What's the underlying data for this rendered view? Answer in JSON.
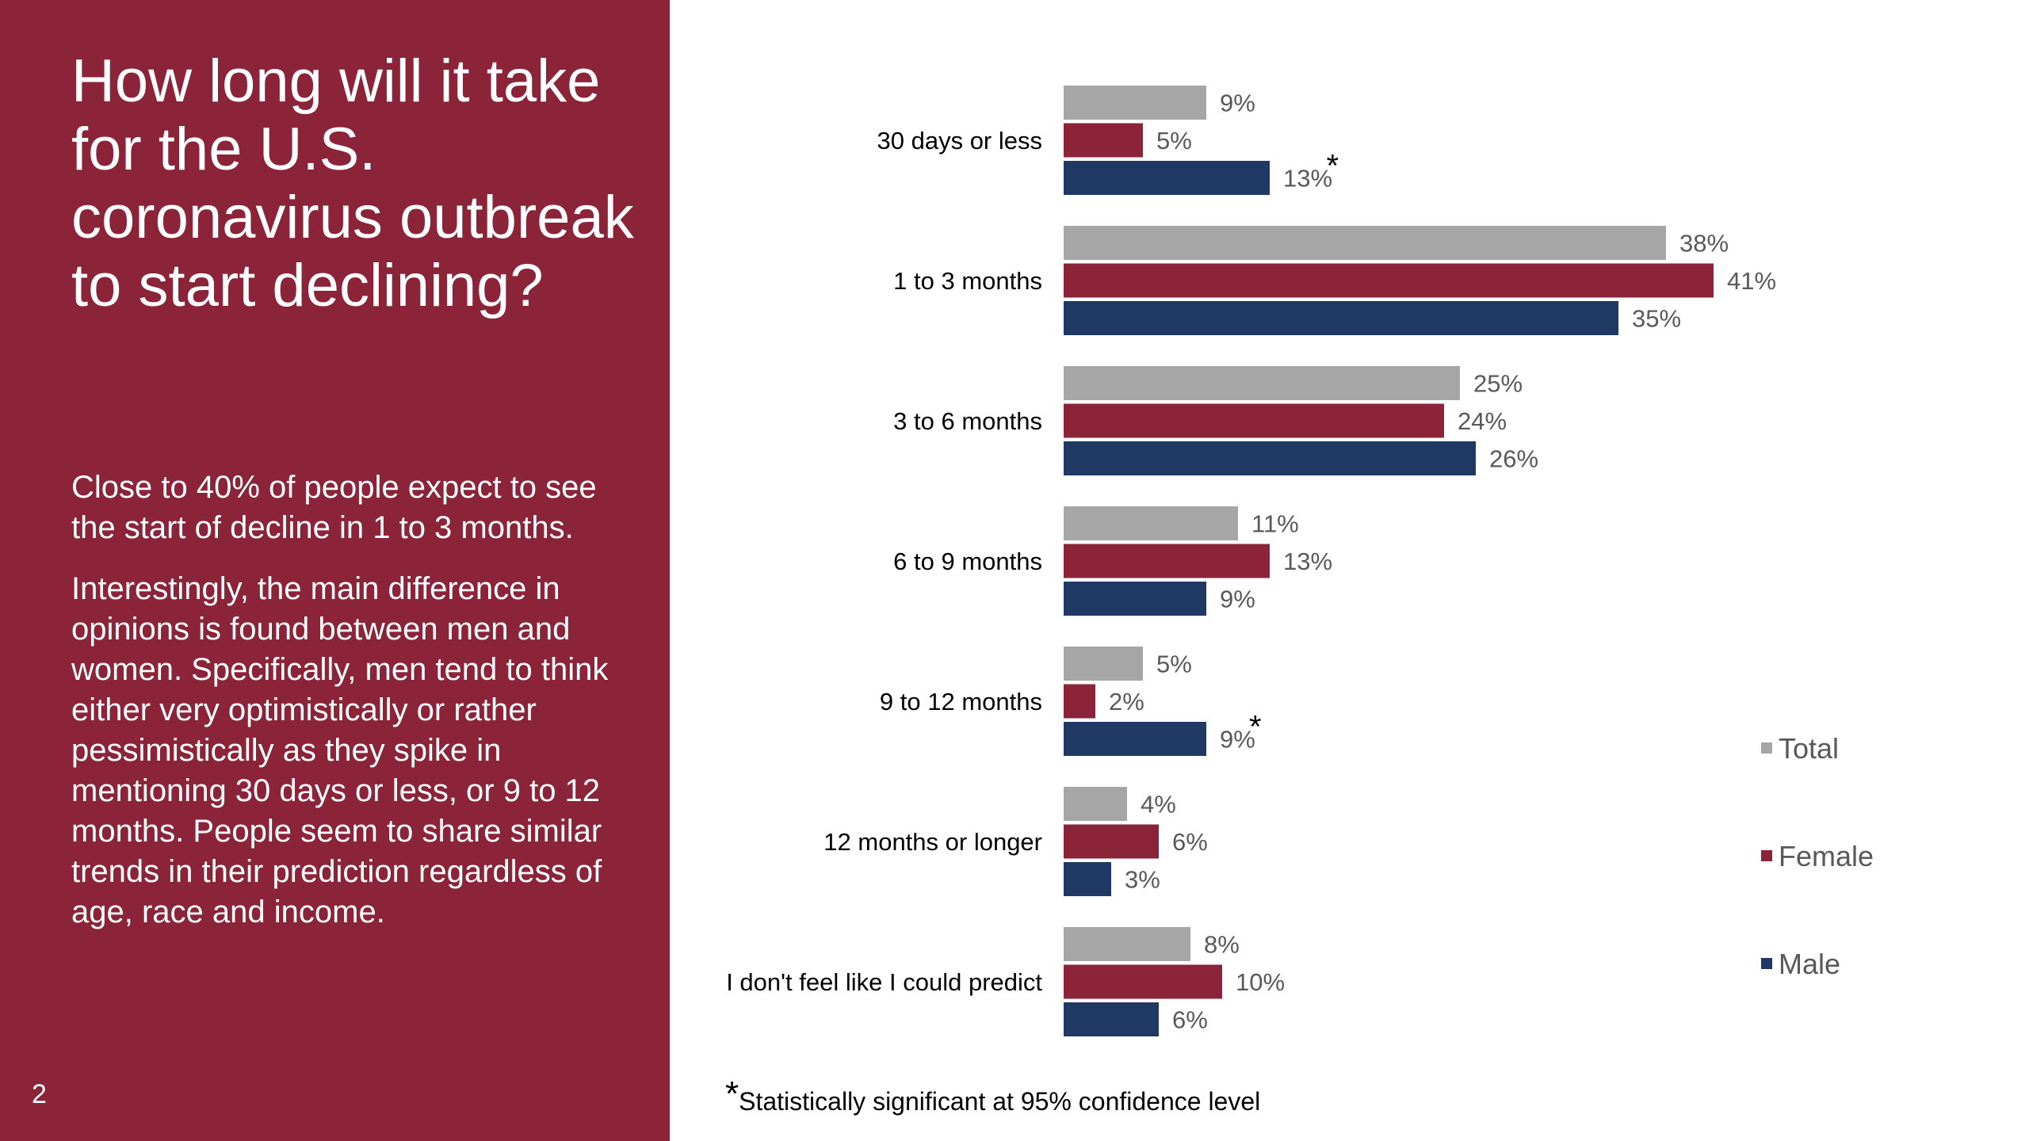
{
  "slide": {
    "title": "How long will it take for the U.S. coronavirus outbreak to start declining?",
    "paragraph_1": "Close to 40% of people expect to see the start of decline in 1 to 3 months.",
    "paragraph_2": "Interestingly, the main difference in opinions is found between men and women. Specifically, men tend to think either very optimistically or rather pessimistically as they spike in mentioning 30 days or less, or 9 to 12 months. People seem to share similar trends in their prediction regardless of age, race and income.",
    "page_number": "2",
    "footnote_star": "*",
    "footnote": "Statistically significant at 95% confidence level"
  },
  "colors": {
    "panel": "#8B2339",
    "total": "#A6A6A6",
    "female": "#8B2339",
    "male": "#1F3864",
    "value_label": "#595959"
  },
  "chart_data": {
    "type": "bar",
    "orientation": "horizontal",
    "categories": [
      "30 days or less",
      "1 to 3 months",
      "3 to 6 months",
      "6 to 9 months",
      "9 to 12 months",
      "12 months or longer",
      "I don't feel like I could predict"
    ],
    "series": [
      {
        "name": "Total",
        "values": [
          9,
          38,
          25,
          11,
          5,
          4,
          8
        ],
        "labels": [
          "9%",
          "38%",
          "25%",
          "11%",
          "5%",
          "4%",
          "8%"
        ]
      },
      {
        "name": "Female",
        "values": [
          5,
          41,
          24,
          13,
          2,
          6,
          10
        ],
        "labels": [
          "5%",
          "41%",
          "24%",
          "13%",
          "2%",
          "6%",
          "10%"
        ]
      },
      {
        "name": "Male",
        "values": [
          13,
          35,
          26,
          9,
          9,
          3,
          6
        ],
        "labels": [
          "13%",
          "35%",
          "26%",
          "9%",
          "9%",
          "3%",
          "6%"
        ]
      }
    ],
    "significant": [
      {
        "series": "Male",
        "category": "30 days or less",
        "marker": "*"
      },
      {
        "series": "Male",
        "category": "9 to 12 months",
        "marker": "*"
      }
    ],
    "legend": [
      "Total",
      "Female",
      "Male"
    ],
    "legend_position": "right",
    "xlim": [
      0,
      45
    ],
    "grid": false
  }
}
